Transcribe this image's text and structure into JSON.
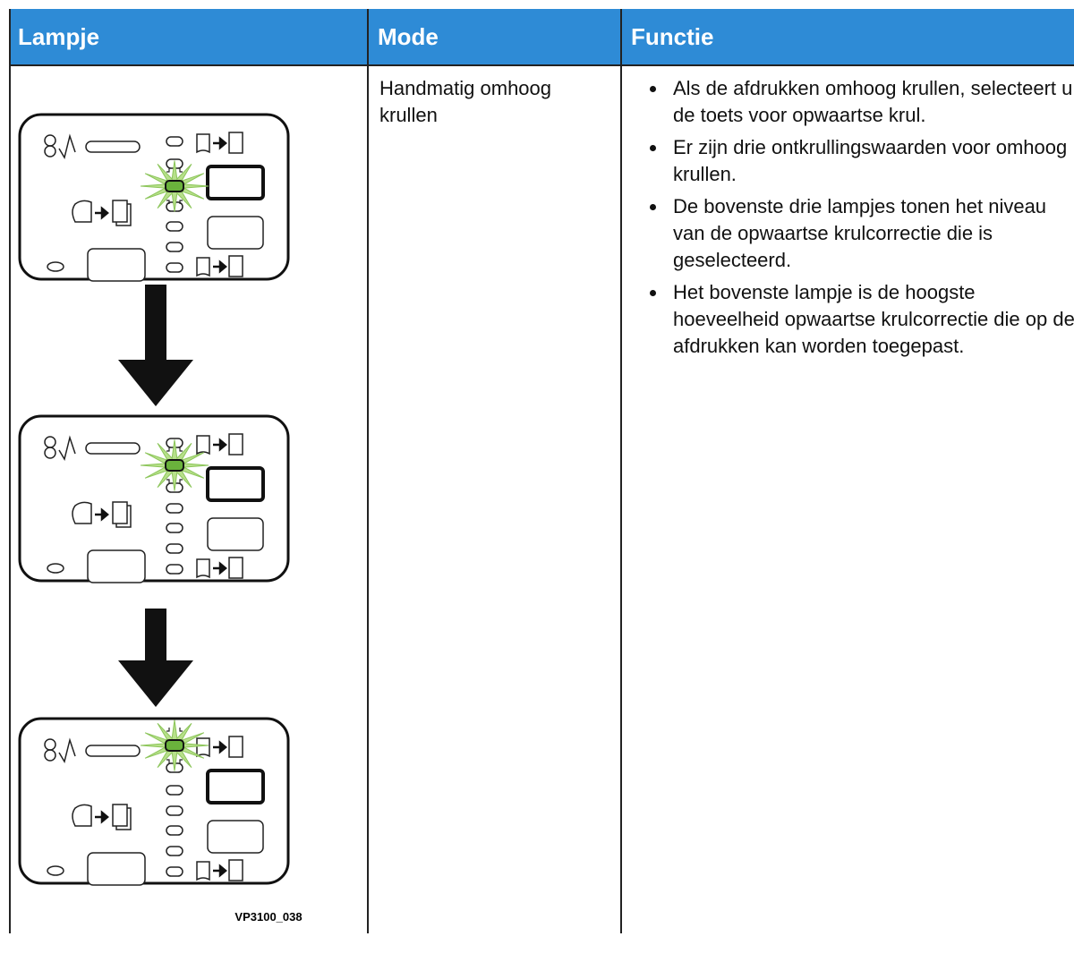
{
  "table": {
    "headers": [
      "Lampje",
      "Mode",
      "Functie"
    ],
    "rows": [
      {
        "figure_label": "VP3100_038",
        "mode": "Handmatig omhoog krullen",
        "functie": [
          "Als de afdrukken omhoog krullen, selecteert u de toets voor opwaartse krul.",
          "Er zijn drie ontkrullingswaarden voor omhoog krullen.",
          "De bovenste drie lampjes tonen het niveau van de opwaartse krulcorrectie die is geselecteerd.",
          "Het bovenste lampje is de hoogste hoeveelheid opwaartse krulcorrectie die op de afdrukken kan worden toegepast."
        ]
      }
    ]
  }
}
